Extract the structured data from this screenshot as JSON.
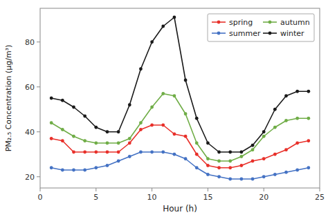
{
  "chart_data": {
    "type": "line",
    "xlabel": "Hour (h)",
    "ylabel": "PM₂.₅ Concentration (μg/m³)",
    "x": [
      1,
      2,
      3,
      4,
      5,
      6,
      7,
      8,
      9,
      10,
      11,
      12,
      13,
      14,
      15,
      16,
      17,
      18,
      19,
      20,
      21,
      22,
      23,
      24
    ],
    "series": [
      {
        "name": "spring",
        "color": "#e8302a",
        "values": [
          37,
          36,
          31,
          31,
          31,
          31,
          31,
          35,
          41,
          43,
          43,
          39,
          38,
          30,
          25,
          24,
          24,
          25,
          27,
          28,
          30,
          32,
          35,
          36
        ]
      },
      {
        "name": "summer",
        "color": "#4472c4",
        "values": [
          24,
          23,
          23,
          23,
          24,
          25,
          27,
          29,
          31,
          31,
          31,
          30,
          28,
          24,
          21,
          20,
          19,
          19,
          19,
          20,
          21,
          22,
          23,
          24
        ]
      },
      {
        "name": "autumn",
        "color": "#70ad47",
        "values": [
          44,
          41,
          38,
          36,
          35,
          35,
          35,
          37,
          44,
          51,
          57,
          56,
          48,
          35,
          28,
          27,
          27,
          29,
          32,
          38,
          42,
          45,
          46,
          46
        ]
      },
      {
        "name": "winter",
        "color": "#1a1a1a",
        "values": [
          55,
          54,
          51,
          47,
          42,
          40,
          40,
          52,
          68,
          80,
          87,
          91,
          63,
          46,
          35,
          31,
          31,
          31,
          34,
          40,
          50,
          56,
          58,
          58
        ]
      }
    ],
    "xlim": [
      0,
      25
    ],
    "ylim": [
      15,
      95
    ],
    "xticks": [
      0,
      5,
      10,
      15,
      20,
      25
    ],
    "yticks": [
      20,
      40,
      60,
      80
    ],
    "marker": "circle",
    "grid": false,
    "legend": "upper right"
  }
}
